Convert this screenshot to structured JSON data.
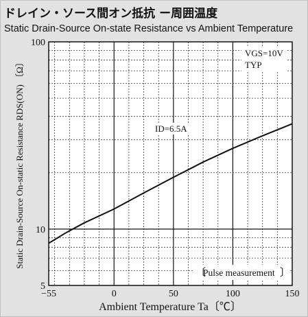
{
  "title": "ドレイン・ソース間オン抵抗 ー周囲温度",
  "subtitle": "Static Drain-Source On-state Resistance vs Ambient Temperature",
  "chart_data": {
    "type": "line",
    "xlabel": "Ambient Temperature  Ta〔℃〕",
    "ylabel": "Static Drain-Source On-static Resistance  RDS(ON) 〔Ω〕",
    "xlim": [
      -55,
      150
    ],
    "ylim": [
      5,
      100
    ],
    "yscale": "log",
    "x_ticks": [
      "-55",
      "0",
      "50",
      "100",
      "150"
    ],
    "y_ticks": [
      "5",
      "10",
      "100"
    ],
    "grid": true,
    "annotations": {
      "conditions": [
        "VGS=10V",
        "TYP"
      ],
      "id_label": "ID=6.5A",
      "pulse": "Pulse measurement"
    },
    "series": [
      {
        "x": [
          -55,
          -40,
          -25,
          0,
          25,
          50,
          75,
          100,
          125,
          150
        ],
        "values": [
          8.4,
          9.6,
          10.8,
          12.8,
          15.6,
          18.9,
          22.8,
          27.0,
          31.5,
          36.5
        ]
      }
    ]
  }
}
